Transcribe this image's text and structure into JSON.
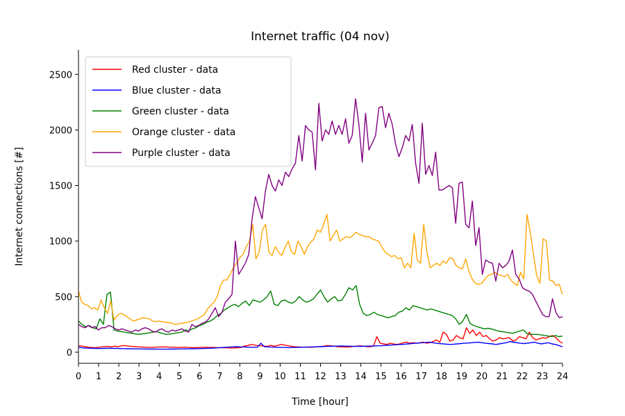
{
  "chart_data": {
    "type": "line",
    "title": "Internet traffic (04 nov)",
    "xlabel": "Time [hour]",
    "ylabel": "Internet connections [#]",
    "xlim": [
      0,
      24
    ],
    "ylim": [
      -100,
      2720
    ],
    "x_ticks": [
      0,
      1,
      2,
      3,
      4,
      5,
      6,
      7,
      8,
      9,
      10,
      11,
      12,
      13,
      14,
      15,
      16,
      17,
      18,
      19,
      20,
      21,
      22,
      23,
      24
    ],
    "y_ticks": [
      0,
      500,
      1000,
      1500,
      2000,
      2500
    ],
    "grid": false,
    "legend_position": "top-left",
    "x_step_hours": 0.1667,
    "series": [
      {
        "name": "Red cluster - data",
        "color": "#ff0000",
        "values": [
          60,
          55,
          50,
          45,
          42,
          40,
          45,
          48,
          50,
          52,
          48,
          55,
          50,
          58,
          60,
          55,
          52,
          50,
          48,
          46,
          45,
          44,
          43,
          45,
          46,
          47,
          48,
          46,
          45,
          44,
          43,
          44,
          45,
          43,
          42,
          41,
          42,
          43,
          44,
          44,
          43,
          42,
          41,
          40,
          40,
          39,
          38,
          38,
          40,
          42,
          55,
          60,
          70,
          65,
          60,
          58,
          55,
          52,
          62,
          55,
          60,
          70,
          65,
          60,
          55,
          50,
          48,
          46,
          45,
          45,
          44,
          46,
          48,
          50,
          55,
          60,
          58,
          55,
          50,
          48,
          47,
          46,
          48,
          52,
          55,
          58,
          55,
          50,
          50,
          55,
          140,
          80,
          75,
          70,
          80,
          75,
          70,
          75,
          85,
          90,
          80,
          85,
          80,
          85,
          90,
          80,
          85,
          95,
          110,
          90,
          180,
          160,
          100,
          110,
          150,
          130,
          120,
          220,
          170,
          200,
          150,
          180,
          140,
          150,
          120,
          100,
          110,
          130,
          120,
          125,
          130,
          100,
          110,
          140,
          130,
          120,
          180,
          130,
          110,
          120,
          130,
          125,
          140,
          150,
          130,
          100,
          80
        ]
      },
      {
        "name": "Blue cluster - data",
        "color": "#0000ff",
        "values": [
          45,
          40,
          38,
          36,
          35,
          34,
          33,
          34,
          35,
          36,
          35,
          34,
          33,
          32,
          31,
          31,
          30,
          30,
          29,
          29,
          28,
          28,
          28,
          27,
          27,
          27,
          28,
          28,
          29,
          29,
          30,
          30,
          31,
          31,
          32,
          33,
          34,
          35,
          36,
          38,
          40,
          42,
          44,
          46,
          48,
          50,
          48,
          47,
          46,
          45,
          44,
          45,
          80,
          50,
          48,
          46,
          45,
          44,
          43,
          42,
          41,
          42,
          43,
          44,
          45,
          46,
          47,
          48,
          49,
          50,
          51,
          52,
          53,
          54,
          55,
          56,
          55,
          54,
          53,
          52,
          52,
          53,
          54,
          55,
          56,
          57,
          58,
          60,
          62,
          64,
          66,
          68,
          70,
          72,
          75,
          78,
          80,
          82,
          85,
          88,
          90,
          85,
          80,
          78,
          75,
          72,
          70,
          72,
          75,
          78,
          80,
          82,
          85,
          88,
          90,
          85,
          80,
          78,
          75,
          70,
          75,
          80,
          85,
          95,
          90,
          85,
          80,
          78,
          80,
          85,
          90,
          80,
          75,
          80,
          85,
          75,
          70,
          60,
          50
        ]
      },
      {
        "name": "Green cluster - data",
        "color": "#008000",
        "values": [
          280,
          250,
          230,
          240,
          220,
          210,
          300,
          250,
          520,
          540,
          200,
          190,
          185,
          180,
          175,
          170,
          165,
          160,
          165,
          170,
          175,
          180,
          185,
          175,
          165,
          160,
          165,
          170,
          175,
          180,
          200,
          195,
          210,
          220,
          240,
          250,
          270,
          280,
          300,
          330,
          350,
          380,
          400,
          420,
          430,
          410,
          440,
          460,
          420,
          470,
          460,
          450,
          470,
          500,
          550,
          430,
          420,
          460,
          470,
          450,
          440,
          460,
          500,
          470,
          450,
          460,
          480,
          520,
          560,
          500,
          450,
          480,
          500,
          460,
          470,
          520,
          580,
          560,
          600,
          430,
          350,
          330,
          340,
          360,
          340,
          330,
          320,
          310,
          320,
          330,
          360,
          370,
          400,
          380,
          420,
          410,
          400,
          390,
          380,
          390,
          380,
          370,
          360,
          350,
          340,
          330,
          300,
          250,
          280,
          340,
          260,
          240,
          230,
          220,
          210,
          215,
          210,
          200,
          190,
          185,
          180,
          175,
          170,
          180,
          190,
          200,
          170,
          160,
          160,
          160,
          155,
          150,
          145,
          140,
          150,
          140,
          145
        ]
      },
      {
        "name": "Orange cluster - data",
        "color": "#ffa500",
        "values": [
          550,
          450,
          430,
          420,
          390,
          400,
          380,
          470,
          400,
          350,
          460,
          290,
          330,
          350,
          340,
          320,
          300,
          280,
          290,
          300,
          310,
          305,
          300,
          280,
          275,
          280,
          275,
          270,
          265,
          260,
          250,
          255,
          260,
          265,
          270,
          280,
          290,
          300,
          320,
          340,
          390,
          420,
          450,
          500,
          600,
          650,
          650,
          700,
          760,
          800,
          850,
          880,
          950,
          1000,
          1150,
          840,
          900,
          1100,
          1150,
          900,
          870,
          950,
          900,
          870,
          940,
          1000,
          900,
          880,
          1000,
          950,
          880,
          950,
          990,
          1020,
          1100,
          1080,
          1150,
          1240,
          1000,
          1050,
          1100,
          1000,
          1020,
          1040,
          1030,
          1050,
          1080,
          1060,
          1050,
          1040,
          1040,
          1020,
          1010,
          1000,
          950,
          900,
          880,
          860,
          870,
          840,
          850,
          760,
          800,
          760,
          1070,
          830,
          800,
          1150,
          900,
          760,
          780,
          800,
          780,
          820,
          800,
          850,
          840,
          780,
          760,
          750,
          840,
          730,
          660,
          620,
          610,
          620,
          660,
          690,
          700,
          720,
          700,
          690,
          680,
          700,
          650,
          620,
          600,
          720,
          660,
          1240,
          1080,
          880,
          690,
          620,
          1020,
          1000,
          650,
          640,
          600,
          610,
          520
        ]
      },
      {
        "name": "Purple cluster - data",
        "color": "#800080",
        "values": [
          250,
          230,
          220,
          240,
          220,
          230,
          200,
          220,
          220,
          240,
          230,
          210,
          200,
          210,
          200,
          190,
          180,
          200,
          190,
          210,
          220,
          210,
          190,
          180,
          200,
          210,
          190,
          180,
          200,
          190,
          200,
          210,
          190,
          180,
          250,
          230,
          240,
          260,
          270,
          300,
          350,
          400,
          320,
          360,
          450,
          480,
          520,
          1000,
          700,
          750,
          800,
          880,
          1200,
          1400,
          1300,
          1200,
          1450,
          1600,
          1500,
          1450,
          1550,
          1500,
          1620,
          1580,
          1650,
          1700,
          1950,
          1720,
          2040,
          2000,
          1980,
          1640,
          2240,
          1900,
          2000,
          1960,
          2080,
          1960,
          2040,
          1960,
          2100,
          1880,
          1950,
          2280,
          2050,
          1710,
          2150,
          1820,
          1880,
          1950,
          2200,
          2210,
          2020,
          2150,
          2050,
          1870,
          1760,
          1840,
          1950,
          1900,
          2050,
          1700,
          1520,
          2060,
          1600,
          1680,
          1590,
          1800,
          1460,
          1460,
          1480,
          1500,
          1480,
          1160,
          1520,
          1530,
          1150,
          1120,
          1360,
          960,
          1120,
          700,
          830,
          810,
          800,
          640,
          800,
          760,
          780,
          820,
          920,
          700,
          660,
          580,
          560,
          550,
          520,
          460,
          400,
          340,
          320,
          320,
          480,
          360,
          310,
          320
        ]
      }
    ]
  }
}
